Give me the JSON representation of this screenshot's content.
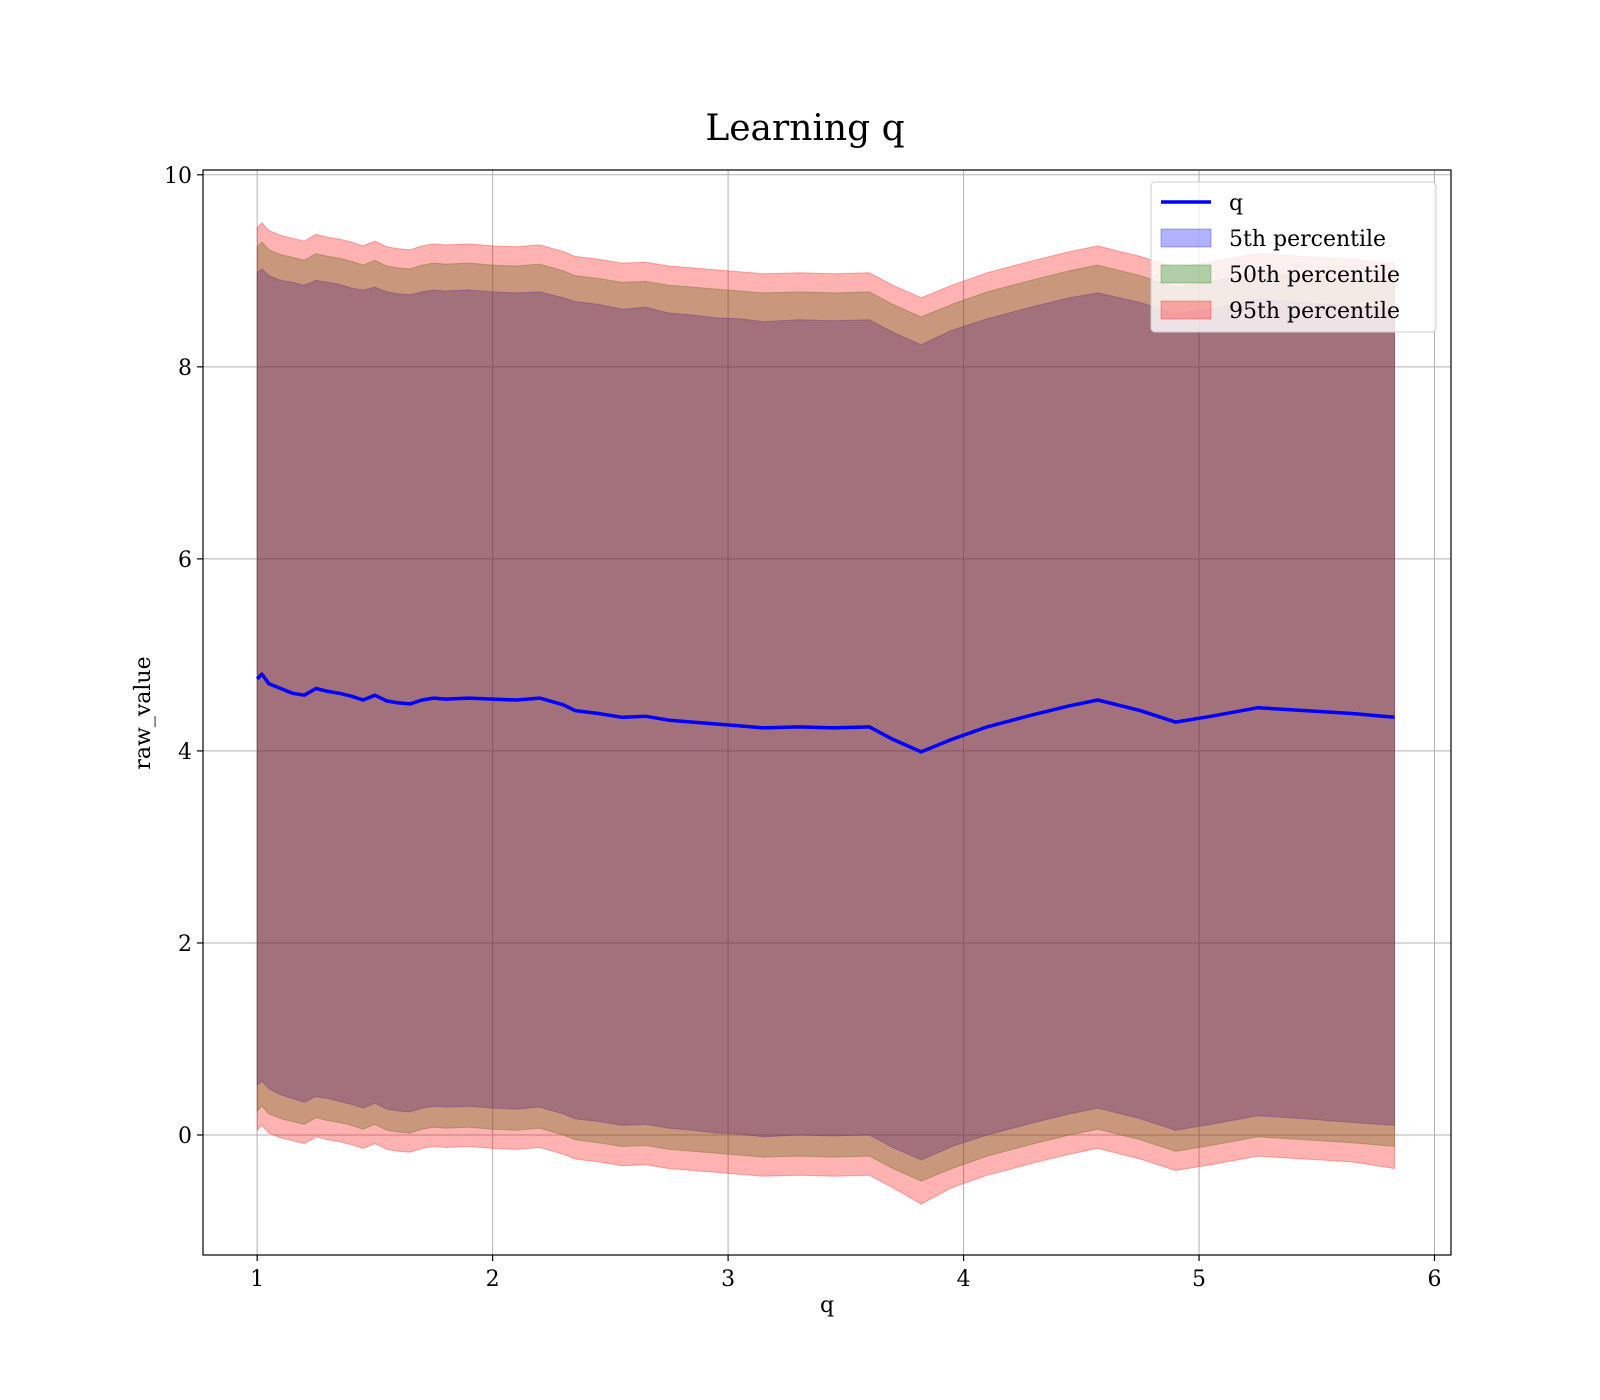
{
  "chart_data": {
    "type": "area",
    "title": "Learning q",
    "xlabel": "q",
    "ylabel": "raw_value",
    "xlim": [
      0.77,
      6.07
    ],
    "ylim": [
      -1.25,
      10.05
    ],
    "xticks": [
      1,
      2,
      3,
      4,
      5,
      6
    ],
    "yticks": [
      0,
      2,
      4,
      6,
      8,
      10
    ],
    "grid": true,
    "legend_placement": "top-right",
    "x": [
      1.0,
      1.02,
      1.05,
      1.1,
      1.15,
      1.2,
      1.25,
      1.3,
      1.35,
      1.4,
      1.45,
      1.5,
      1.55,
      1.6,
      1.65,
      1.7,
      1.75,
      1.8,
      1.9,
      2.0,
      2.1,
      2.2,
      2.3,
      2.35,
      2.45,
      2.55,
      2.65,
      2.75,
      2.85,
      2.95,
      3.05,
      3.15,
      3.3,
      3.45,
      3.6,
      3.7,
      3.82,
      3.95,
      4.1,
      4.3,
      4.45,
      4.57,
      4.75,
      4.9,
      5.05,
      5.25,
      5.45,
      5.65,
      5.83
    ],
    "q": [
      4.75,
      4.8,
      4.7,
      4.65,
      4.6,
      4.58,
      4.65,
      4.62,
      4.6,
      4.57,
      4.53,
      4.58,
      4.52,
      4.5,
      4.49,
      4.53,
      4.55,
      4.54,
      4.55,
      4.54,
      4.53,
      4.55,
      4.48,
      4.42,
      4.39,
      4.35,
      4.36,
      4.32,
      4.3,
      4.28,
      4.26,
      4.24,
      4.25,
      4.24,
      4.25,
      4.12,
      3.99,
      4.12,
      4.25,
      4.38,
      4.47,
      4.53,
      4.42,
      4.3,
      4.36,
      4.45,
      4.42,
      4.39,
      4.35
    ],
    "series": [
      {
        "name": "5th percentile",
        "color": "#0000ff",
        "alpha": 0.3,
        "upper": [
          8.98,
          9.02,
          8.95,
          8.9,
          8.88,
          8.85,
          8.9,
          8.88,
          8.86,
          8.82,
          8.8,
          8.83,
          8.78,
          8.76,
          8.75,
          8.78,
          8.8,
          8.79,
          8.8,
          8.78,
          8.77,
          8.78,
          8.72,
          8.68,
          8.65,
          8.6,
          8.62,
          8.56,
          8.54,
          8.51,
          8.5,
          8.47,
          8.49,
          8.48,
          8.49,
          8.36,
          8.23,
          8.38,
          8.5,
          8.63,
          8.72,
          8.77,
          8.67,
          8.55,
          8.6,
          8.7,
          8.67,
          8.63,
          8.6
        ],
        "lower": [
          0.52,
          0.56,
          0.48,
          0.42,
          0.38,
          0.34,
          0.4,
          0.38,
          0.35,
          0.32,
          0.28,
          0.33,
          0.27,
          0.25,
          0.24,
          0.28,
          0.3,
          0.29,
          0.3,
          0.28,
          0.27,
          0.29,
          0.22,
          0.17,
          0.14,
          0.1,
          0.11,
          0.07,
          0.05,
          0.02,
          0.01,
          -0.02,
          0.0,
          -0.01,
          0.0,
          -0.13,
          -0.26,
          -0.12,
          0.0,
          0.13,
          0.22,
          0.28,
          0.17,
          0.05,
          0.11,
          0.2,
          0.17,
          0.13,
          0.1
        ]
      },
      {
        "name": "50th percentile",
        "color": "#008000",
        "alpha": 0.3,
        "upper": [
          9.25,
          9.3,
          9.22,
          9.17,
          9.14,
          9.11,
          9.18,
          9.15,
          9.13,
          9.1,
          9.06,
          9.11,
          9.05,
          9.03,
          9.02,
          9.06,
          9.08,
          9.07,
          9.08,
          9.06,
          9.05,
          9.07,
          9.0,
          8.95,
          8.92,
          8.88,
          8.89,
          8.85,
          8.83,
          8.81,
          8.79,
          8.77,
          8.78,
          8.77,
          8.78,
          8.65,
          8.52,
          8.65,
          8.78,
          8.91,
          9.0,
          9.06,
          8.95,
          8.83,
          8.89,
          8.98,
          8.95,
          8.92,
          8.88
        ],
        "lower": [
          0.25,
          0.3,
          0.22,
          0.17,
          0.14,
          0.11,
          0.18,
          0.15,
          0.13,
          0.1,
          0.06,
          0.11,
          0.05,
          0.03,
          0.02,
          0.06,
          0.08,
          0.07,
          0.08,
          0.06,
          0.05,
          0.07,
          0.0,
          -0.05,
          -0.08,
          -0.12,
          -0.11,
          -0.15,
          -0.17,
          -0.19,
          -0.21,
          -0.23,
          -0.22,
          -0.23,
          -0.22,
          -0.35,
          -0.48,
          -0.35,
          -0.22,
          -0.09,
          0.0,
          0.06,
          -0.05,
          -0.17,
          -0.11,
          -0.02,
          -0.05,
          -0.08,
          -0.12
        ]
      },
      {
        "name": "95th percentile",
        "color": "#ff0000",
        "alpha": 0.3,
        "upper": [
          9.45,
          9.5,
          9.42,
          9.37,
          9.34,
          9.31,
          9.38,
          9.35,
          9.33,
          9.3,
          9.26,
          9.31,
          9.25,
          9.23,
          9.22,
          9.26,
          9.28,
          9.27,
          9.28,
          9.26,
          9.25,
          9.27,
          9.2,
          9.15,
          9.12,
          9.08,
          9.09,
          9.05,
          9.03,
          9.01,
          8.99,
          8.97,
          8.98,
          8.97,
          8.98,
          8.85,
          8.72,
          8.85,
          8.98,
          9.11,
          9.2,
          9.26,
          9.15,
          9.03,
          9.09,
          9.18,
          9.15,
          9.12,
          9.08
        ],
        "lower": [
          0.05,
          0.1,
          0.02,
          -0.03,
          -0.06,
          -0.09,
          -0.02,
          -0.05,
          -0.07,
          -0.1,
          -0.14,
          -0.09,
          -0.15,
          -0.17,
          -0.18,
          -0.14,
          -0.12,
          -0.13,
          -0.12,
          -0.14,
          -0.15,
          -0.13,
          -0.2,
          -0.25,
          -0.28,
          -0.32,
          -0.31,
          -0.35,
          -0.37,
          -0.39,
          -0.41,
          -0.43,
          -0.42,
          -0.43,
          -0.42,
          -0.55,
          -0.72,
          -0.55,
          -0.42,
          -0.29,
          -0.2,
          -0.14,
          -0.25,
          -0.37,
          -0.31,
          -0.22,
          -0.25,
          -0.28,
          -0.35
        ]
      }
    ],
    "line": {
      "name": "q",
      "color": "#0000ff"
    },
    "legend": [
      {
        "label": "q",
        "kind": "line",
        "color": "#0000ff"
      },
      {
        "label": "5th percentile",
        "kind": "patch",
        "color": "#0000ff"
      },
      {
        "label": "50th percentile",
        "kind": "patch",
        "color": "#008000"
      },
      {
        "label": "95th percentile",
        "kind": "patch",
        "color": "#ff0000"
      }
    ]
  }
}
